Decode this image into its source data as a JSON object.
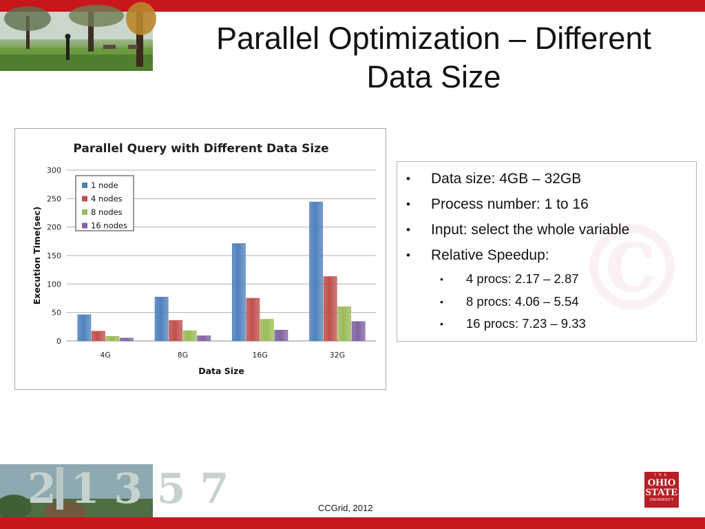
{
  "slide": {
    "title_line1": "Parallel Optimization – Different",
    "title_line2": "Data Size",
    "footer": "CCGrid, 2012"
  },
  "bullets": [
    {
      "text": "Data size: 4GB – 32GB",
      "level": 1
    },
    {
      "text": "Process number: 1 to 16",
      "level": 1
    },
    {
      "text": "Input: select the whole variable",
      "level": 1
    },
    {
      "text": "Relative  Speedup:",
      "level": 1
    },
    {
      "text": "4 procs:  2.17 – 2.87",
      "level": 2
    },
    {
      "text": "8 procs:  4.06 – 5.54",
      "level": 2
    },
    {
      "text": "16 procs: 7.23 – 9.33",
      "level": 2
    }
  ],
  "logo": {
    "the": "THE",
    "line1": "OHIO",
    "line2": "STATE",
    "line3": "UNIVERSITY"
  },
  "watermark_glyph": "©",
  "photo_bottom_text": "2 1 3 5 7",
  "colors": {
    "brand_red": "#c8161d",
    "series": [
      "#4f81bd",
      "#c0504d",
      "#9bbb59",
      "#8064a2"
    ]
  },
  "chart_data": {
    "type": "bar",
    "title": "Parallel Query with Different Data Size",
    "xlabel": "Data Size",
    "ylabel": "Execution Time(sec)",
    "ylim": [
      0,
      300
    ],
    "yticks": [
      0,
      50,
      100,
      150,
      200,
      250,
      300
    ],
    "grid": true,
    "legend_position": "top-left",
    "categories": [
      "4G",
      "8G",
      "16G",
      "32G"
    ],
    "series": [
      {
        "name": "1 node",
        "values": [
          46,
          77,
          171,
          244
        ]
      },
      {
        "name": "4 nodes",
        "values": [
          17,
          36,
          75,
          113
        ]
      },
      {
        "name": "8 nodes",
        "values": [
          8,
          18,
          38,
          60
        ]
      },
      {
        "name": "16 nodes",
        "values": [
          5,
          9,
          19,
          34
        ]
      }
    ]
  }
}
